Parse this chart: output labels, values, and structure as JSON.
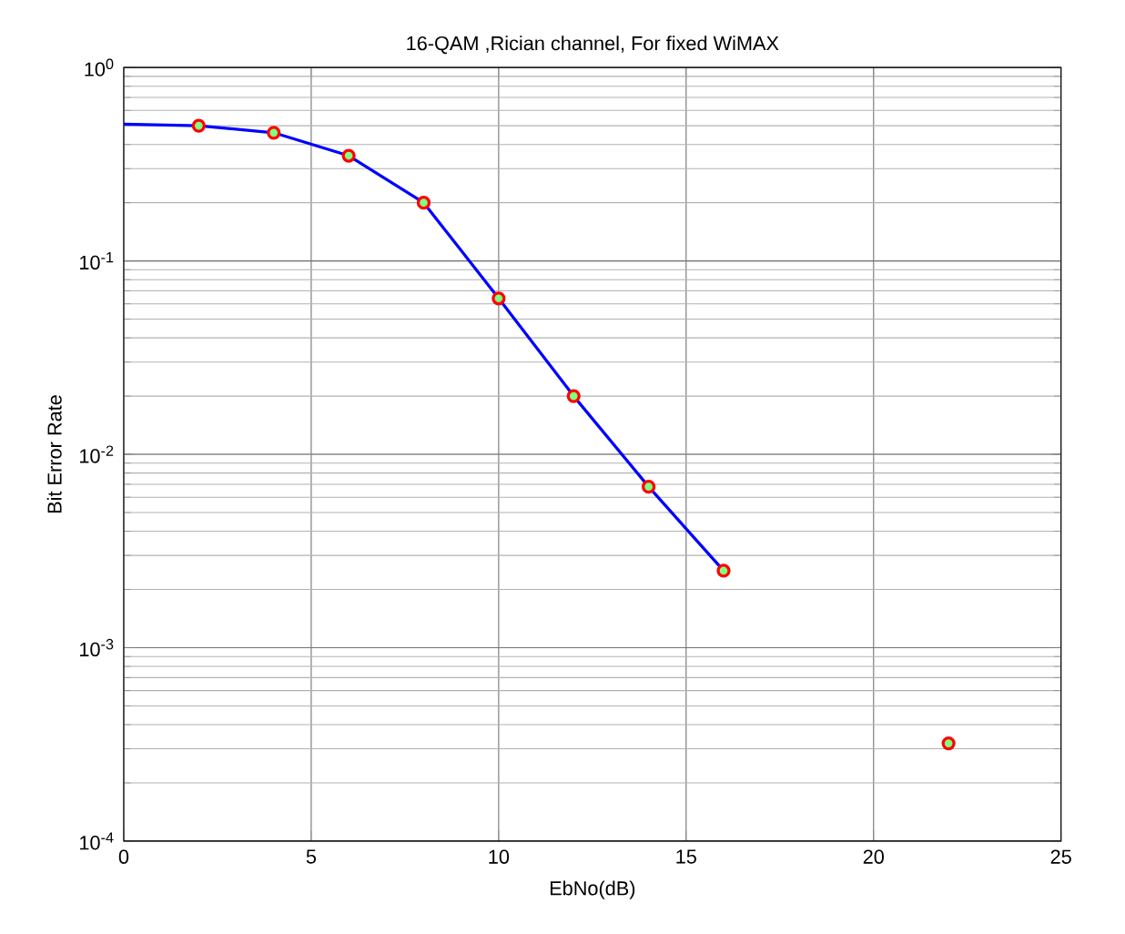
{
  "chart_data": {
    "type": "line",
    "title": "16-QAM ,Rician channel, For fixed WiMAX",
    "xlabel": "EbNo(dB)",
    "ylabel": "Bit Error Rate",
    "log": "y",
    "grid": true,
    "xlim": [
      0,
      25
    ],
    "xticks": [
      0,
      5,
      10,
      15,
      20,
      25
    ],
    "ylim": [
      0.0001,
      1
    ],
    "yticks": [
      {
        "value": 0.0001,
        "label": "10$^{-4}$"
      },
      {
        "value": 0.001,
        "label": "10$^{-3}$"
      },
      {
        "value": 0.01,
        "label": "10$^{-2}$"
      },
      {
        "value": 0.1,
        "label": "10$^{-1}$"
      },
      {
        "value": 1,
        "label": "10$^{0}$"
      }
    ],
    "series": [
      {
        "color": "#0000ff",
        "marker": "none",
        "line_style": "solid",
        "x": [
          0,
          2,
          4,
          6,
          8,
          10,
          12,
          14,
          16
        ],
        "values": [
          0.51,
          0.5,
          0.46,
          0.35,
          0.2,
          0.064,
          0.02,
          0.0068,
          0.0025
        ]
      },
      {
        "type": "scatter",
        "color": "#ff0000",
        "marker": "circle",
        "x": [
          2,
          4,
          6,
          8,
          10,
          12,
          14,
          16,
          22
        ],
        "values": [
          0.5,
          0.46,
          0.35,
          0.2,
          0.064,
          0.02,
          0.0068,
          0.0025,
          0.00032
        ]
      }
    ]
  }
}
